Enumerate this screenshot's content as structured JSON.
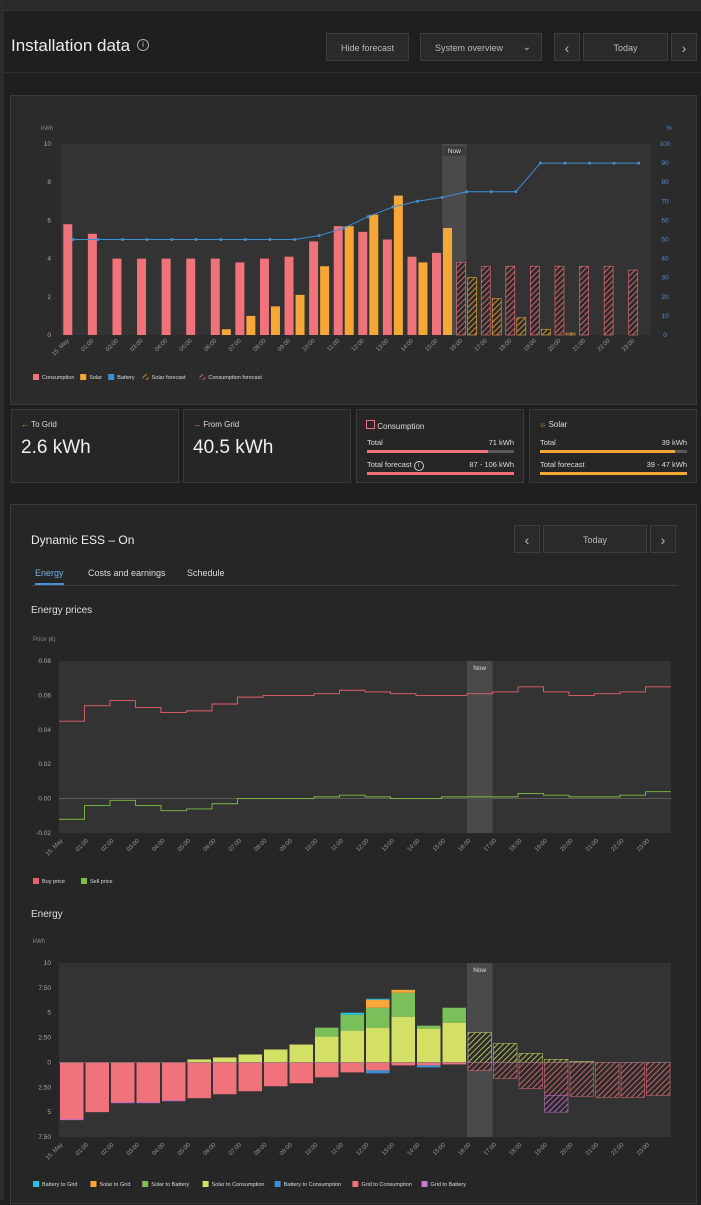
{
  "header": {
    "title": "Installation data",
    "hide_forecast": "Hide forecast",
    "view_select": "System overview",
    "day": "Today"
  },
  "chart_main": {
    "y_left_label": "kWh",
    "y_right_label": "%",
    "y_left_ticks": [
      "0",
      "2",
      "4",
      "6",
      "8",
      "10"
    ],
    "y_right_ticks": [
      "0",
      "10",
      "20",
      "30",
      "40",
      "50",
      "60",
      "70",
      "80",
      "90",
      "100"
    ],
    "x_labels": [
      "15. May",
      "01:00",
      "02:00",
      "03:00",
      "04:00",
      "05:00",
      "06:00",
      "07:00",
      "08:00",
      "09:00",
      "10:00",
      "11:00",
      "12:00",
      "13:00",
      "14:00",
      "15:00",
      "16:00",
      "17:00",
      "18:00",
      "19:00",
      "20:00",
      "21:00",
      "22:00",
      "23:00"
    ],
    "now_label": "Now",
    "legend": [
      "Consumption",
      "Solar",
      "Battery",
      "Solar forecast",
      "Consumption forecast"
    ]
  },
  "chart_data": [
    {
      "type": "bar",
      "title": "",
      "categories": [
        "15. May",
        "01:00",
        "02:00",
        "03:00",
        "04:00",
        "05:00",
        "06:00",
        "07:00",
        "08:00",
        "09:00",
        "10:00",
        "11:00",
        "12:00",
        "13:00",
        "14:00",
        "15:00",
        "16:00",
        "17:00",
        "18:00",
        "19:00",
        "20:00",
        "21:00",
        "22:00",
        "23:00"
      ],
      "series": [
        {
          "name": "Consumption",
          "values": [
            5.8,
            5.3,
            4.0,
            4.0,
            4.0,
            4.0,
            4.0,
            3.8,
            4.0,
            4.1,
            4.9,
            5.7,
            5.4,
            5.0,
            4.1,
            4.3,
            null,
            null,
            null,
            null,
            null,
            null,
            null,
            null
          ]
        },
        {
          "name": "Solar",
          "values": [
            0,
            0,
            0,
            0,
            0,
            0,
            0.3,
            1.0,
            1.5,
            2.1,
            3.6,
            5.7,
            6.3,
            7.3,
            3.8,
            5.6,
            null,
            null,
            null,
            null,
            null,
            null,
            null,
            null
          ]
        },
        {
          "name": "Consumption forecast",
          "values": [
            null,
            null,
            null,
            null,
            null,
            null,
            null,
            null,
            null,
            null,
            null,
            null,
            null,
            null,
            null,
            null,
            3.8,
            3.6,
            3.6,
            3.6,
            3.6,
            3.6,
            3.6,
            3.4
          ]
        },
        {
          "name": "Solar forecast",
          "values": [
            null,
            null,
            null,
            null,
            null,
            null,
            null,
            null,
            null,
            null,
            null,
            null,
            null,
            null,
            null,
            null,
            3.0,
            1.9,
            0.9,
            0.3,
            0.1,
            0,
            0,
            0
          ]
        },
        {
          "name": "Battery",
          "values": [
            50,
            50,
            50,
            50,
            50,
            50,
            50,
            50,
            50,
            50,
            52,
            56,
            62,
            67,
            70,
            72,
            75,
            75,
            75,
            90,
            90,
            90,
            90,
            90
          ]
        }
      ],
      "ylim": [
        0,
        10
      ],
      "y2lim": [
        0,
        100
      ],
      "ylabel": "kWh",
      "y2label": "%"
    },
    {
      "type": "line",
      "title": "Energy prices",
      "ylabel": "Price (€)",
      "ylim": [
        -0.02,
        0.08
      ],
      "categories": [
        "15. May",
        "01:00",
        "02:00",
        "03:00",
        "04:00",
        "05:00",
        "06:00",
        "07:00",
        "08:00",
        "09:00",
        "10:00",
        "11:00",
        "12:00",
        "13:00",
        "14:00",
        "15:00",
        "16:00",
        "17:00",
        "18:00",
        "19:00",
        "20:00",
        "21:00",
        "22:00",
        "23:00"
      ],
      "series": [
        {
          "name": "Buy price",
          "values": [
            0.045,
            0.054,
            0.057,
            0.053,
            0.05,
            0.051,
            0.055,
            0.059,
            0.06,
            0.06,
            0.061,
            0.063,
            0.062,
            0.061,
            0.06,
            0.06,
            0.061,
            0.062,
            0.065,
            0.062,
            0.06,
            0.061,
            0.062,
            0.065
          ]
        },
        {
          "name": "Sell price",
          "values": [
            -0.012,
            -0.004,
            -0.001,
            -0.004,
            -0.007,
            -0.006,
            -0.003,
            0.0,
            0.0,
            0.0,
            0.001,
            0.002,
            0.001,
            0.0,
            0.0,
            0.001,
            0.001,
            0.001,
            0.003,
            0.002,
            0.001,
            0.001,
            0.002,
            0.004
          ]
        }
      ]
    },
    {
      "type": "bar",
      "title": "Energy",
      "ylabel": "kWh",
      "ylim": [
        -7.5,
        10
      ],
      "categories": [
        "15. May",
        "01:00",
        "02:00",
        "03:00",
        "04:00",
        "05:00",
        "06:00",
        "07:00",
        "08:00",
        "09:00",
        "10:00",
        "11:00",
        "12:00",
        "13:00",
        "14:00",
        "15:00",
        "16:00",
        "17:00",
        "18:00",
        "19:00",
        "20:00",
        "21:00",
        "22:00",
        "23:00"
      ],
      "series": [
        {
          "name": "Solar to Consumption",
          "values": [
            0,
            0,
            0,
            0,
            0,
            0.3,
            0.5,
            0.8,
            1.3,
            1.8,
            2.6,
            3.2,
            3.5,
            4.6,
            3.4,
            4.0,
            3.0,
            1.9,
            0.9,
            0.3,
            0.1,
            0,
            0,
            0
          ]
        },
        {
          "name": "Solar to Battery",
          "values": [
            0,
            0,
            0,
            0,
            0,
            0,
            0,
            0,
            0,
            0,
            0.9,
            1.6,
            2.0,
            2.4,
            0.3,
            1.5,
            0,
            0,
            0,
            0,
            0,
            0,
            0,
            0
          ]
        },
        {
          "name": "Solar to Grid",
          "values": [
            0,
            0,
            0,
            0,
            0,
            0,
            0,
            0,
            0,
            0,
            0,
            0,
            0.8,
            0.3,
            0,
            0,
            0,
            0,
            0,
            0,
            0,
            0,
            0,
            0
          ]
        },
        {
          "name": "Battery to Grid",
          "values": [
            0,
            0,
            0,
            0,
            0,
            0,
            0,
            0,
            0,
            0,
            0,
            0.2,
            0.1,
            0,
            0,
            0,
            0,
            0,
            0,
            0,
            0,
            0,
            0,
            0
          ]
        },
        {
          "name": "Grid to Consumption",
          "values": [
            -5.7,
            -5.0,
            -4.0,
            -4.0,
            -3.8,
            -3.6,
            -3.2,
            -2.9,
            -2.4,
            -2.1,
            -1.5,
            -1.0,
            -0.8,
            -0.3,
            -0.3,
            -0.2,
            -0.8,
            -1.6,
            -2.6,
            -3.3,
            -3.4,
            -3.5,
            -3.5,
            -3.3
          ]
        },
        {
          "name": "Battery to Consumption",
          "values": [
            0,
            0,
            0,
            0,
            0,
            0,
            0,
            0,
            0,
            0,
            0,
            0,
            -0.3,
            0,
            -0.2,
            0,
            0,
            0,
            0,
            0,
            0,
            0,
            0,
            0
          ]
        },
        {
          "name": "Grid to Battery",
          "values": [
            -0.1,
            0,
            -0.1,
            -0.1,
            -0.1,
            0,
            0,
            0,
            0,
            0,
            0,
            0,
            0,
            0,
            0,
            0,
            0,
            0,
            0,
            -1.7,
            0,
            0,
            0,
            0
          ]
        }
      ]
    }
  ],
  "cards": {
    "to_grid": {
      "label": "To Grid",
      "value": "2.6 kWh"
    },
    "from_grid": {
      "label": "From Grid",
      "value": "40.5 kWh"
    },
    "consumption": {
      "label": "Consumption",
      "total_label": "Total",
      "total": "71 kWh",
      "forecast_label": "Total forecast",
      "forecast": "87 - 106 kWh",
      "total_frac": 0.82,
      "forecast_frac": 1.0
    },
    "solar": {
      "label": "Solar",
      "total_label": "Total",
      "total": "39 kWh",
      "forecast_label": "Total forecast",
      "forecast": "39 - 47 kWh",
      "total_frac": 0.92,
      "forecast_frac": 1.0
    }
  },
  "ess": {
    "title": "Dynamic ESS – On",
    "day": "Today",
    "tabs": [
      "Energy",
      "Costs and earnings",
      "Schedule"
    ],
    "prices_title": "Energy prices",
    "prices_ylabel": "Price (€)",
    "prices_ticks": [
      "-0.02",
      "0.00",
      "0.02",
      "0.04",
      "0.06",
      "0.08"
    ],
    "prices_legend": [
      "Buy price",
      "Sell price"
    ],
    "energy_title": "Energy",
    "energy_ylabel": "kWh",
    "energy_ticks": [
      "7.50",
      "5",
      "2.50",
      "0",
      "2.50",
      "5",
      "7.50",
      "10"
    ],
    "energy_legend": [
      "Battery to Grid",
      "Solar to Grid",
      "Solar to Battery",
      "Solar to Consumption",
      "Battery to Consumption",
      "Grid to Consumption",
      "Grid to Battery"
    ]
  },
  "colors": {
    "consumption": "#f0727a",
    "solar": "#f7a737",
    "battery": "#3d8fd6",
    "buy": "#e8606a",
    "sell": "#7bc043",
    "solar_to_consumption": "#d3e065",
    "solar_to_battery": "#7ac05a",
    "solar_to_grid": "#f7a737",
    "battery_to_grid": "#25c4e0",
    "battery_to_consumption": "#3d8fd6",
    "grid_to_consumption": "#f0727a",
    "grid_to_battery": "#cf74d8"
  }
}
